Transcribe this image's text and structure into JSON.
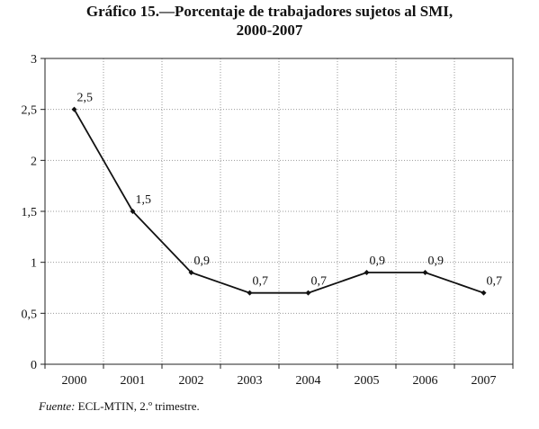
{
  "chart_data": {
    "type": "line",
    "title_line1": "Gráfico 15.—Porcentaje de trabajadores sujetos al SMI,",
    "title_line2": "2000-2007",
    "xlabel": "",
    "ylabel": "",
    "categories": [
      "2000",
      "2001",
      "2002",
      "2003",
      "2004",
      "2005",
      "2006",
      "2007"
    ],
    "series": [
      {
        "values": [
          2.5,
          1.5,
          0.9,
          0.7,
          0.7,
          0.9,
          0.9,
          0.7
        ],
        "data_labels": [
          "2,5",
          "1,5",
          "0,9",
          "0,7",
          "0,7",
          "0,9",
          "0,9",
          "0,7"
        ]
      }
    ],
    "y_ticks": [
      0,
      0.5,
      1,
      1.5,
      2,
      2.5,
      3
    ],
    "y_tick_labels": [
      "0",
      "0,5",
      "1",
      "1,5",
      "2",
      "2,5",
      "3"
    ],
    "ylim": [
      0,
      3
    ],
    "grid": "dotted",
    "legend": "none",
    "line_color": "#111111"
  },
  "source": {
    "label": "Fuente:",
    "text": " ECL-MTIN, 2.º trimestre."
  }
}
